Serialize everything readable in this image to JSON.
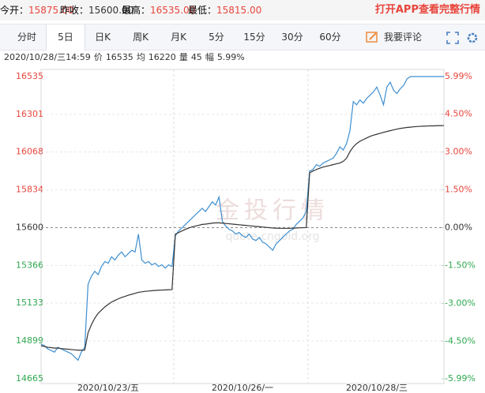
{
  "header": {
    "stats": [
      {
        "label": "今开：",
        "value": "15875.00"
      },
      {
        "label": "昨收：",
        "value": "15600.00"
      },
      {
        "label": "最高：",
        "value": "16535.00"
      },
      {
        "label": "最低：",
        "value": "15815.00"
      }
    ],
    "app_link": "打开APP查看完整行情"
  },
  "toolbar": {
    "tabs": [
      "分时",
      "5日",
      "日K",
      "周K",
      "月K",
      "5分",
      "15分",
      "30分",
      "60分"
    ],
    "comment": "我要评论"
  },
  "info": {
    "time": "2020/10/28/三14:59",
    "items": [
      {
        "label": "价",
        "value": "16535"
      },
      {
        "label": "均",
        "value": "16220"
      },
      {
        "label": "量",
        "value": "45"
      },
      {
        "label": "幅",
        "value": "5.99%"
      }
    ]
  },
  "watermark": {
    "text": "金投行情",
    "url": "quote.cngold.org"
  },
  "chart_data": {
    "type": "line",
    "categories": [
      null,
      null,
      null,
      null,
      null,
      null,
      null,
      null,
      null,
      null,
      null,
      null,
      null,
      null,
      null,
      null,
      null,
      null,
      null,
      null,
      "2020/10/23/五",
      null,
      null,
      null,
      null,
      null,
      null,
      null,
      null,
      null,
      null,
      null,
      null,
      null,
      null,
      null,
      null,
      null,
      null,
      null,
      null,
      null,
      null,
      null,
      null,
      null,
      null,
      null,
      null,
      null,
      null,
      null,
      null,
      null,
      null,
      null,
      null,
      null,
      null,
      null,
      "2020/10/26/一",
      null,
      null,
      null,
      null,
      null,
      null,
      null,
      null,
      null,
      null,
      null,
      null,
      null,
      null,
      null,
      null,
      null,
      null,
      null,
      null,
      null,
      null,
      null,
      null,
      null,
      null,
      null,
      null,
      null,
      null,
      null,
      null,
      null,
      null,
      null,
      null,
      null,
      null,
      null,
      "2020/10/28/三",
      null,
      null,
      null,
      null,
      null,
      null,
      null,
      null,
      null,
      null,
      null,
      null,
      null,
      null,
      null,
      null,
      null,
      null,
      null,
      null
    ],
    "series": [
      {
        "name": "价",
        "color": "#3d8fd1",
        "values": [
          14880,
          14870,
          14850,
          14840,
          14830,
          14860,
          14850,
          14840,
          14830,
          14820,
          14800,
          14780,
          14830,
          14860,
          15250,
          15300,
          15330,
          15310,
          15360,
          15390,
          15380,
          15420,
          15400,
          15430,
          15450,
          15420,
          15440,
          15460,
          15450,
          15560,
          15400,
          15380,
          15390,
          15370,
          15380,
          15360,
          15370,
          15350,
          15370,
          15360,
          15550,
          15580,
          15600,
          15620,
          15640,
          15660,
          15680,
          15700,
          15720,
          15700,
          15730,
          15760,
          15740,
          15790,
          15640,
          15610,
          15590,
          15580,
          15560,
          15570,
          15550,
          15540,
          15560,
          15530,
          15520,
          15540,
          15510,
          15500,
          15480,
          15460,
          15500,
          15520,
          15540,
          15560,
          15580,
          15590,
          15620,
          15640,
          15660,
          15700,
          15950,
          15960,
          15990,
          15980,
          16000,
          16010,
          16020,
          16030,
          16060,
          16100,
          16080,
          16120,
          16200,
          16380,
          16360,
          16390,
          16370,
          16400,
          16420,
          16440,
          16470,
          16420,
          16360,
          16470,
          16500,
          16450,
          16430,
          16460,
          16480,
          16520,
          16535,
          16535,
          16535,
          16535,
          16535,
          16535,
          16535,
          16535,
          16535,
          16535,
          16535
        ]
      },
      {
        "name": "均",
        "color": "#333333",
        "values": [
          14870,
          14865,
          14860,
          14858,
          14855,
          14855,
          14852,
          14850,
          14848,
          14846,
          14844,
          14842,
          14842,
          14843,
          14950,
          15000,
          15040,
          15070,
          15090,
          15110,
          15125,
          15140,
          15150,
          15160,
          15168,
          15175,
          15182,
          15188,
          15194,
          15200,
          15203,
          15206,
          15208,
          15210,
          15212,
          15213,
          15214,
          15215,
          15216,
          15217,
          15560,
          15570,
          15580,
          15590,
          15598,
          15605,
          15610,
          15615,
          15620,
          15622,
          15625,
          15628,
          15630,
          15630,
          15628,
          15626,
          15624,
          15622,
          15620,
          15618,
          15616,
          15614,
          15612,
          15610,
          15608,
          15606,
          15604,
          15602,
          15600,
          15598,
          15597,
          15596,
          15596,
          15596,
          15596,
          15597,
          15598,
          15599,
          15600,
          15601,
          15940,
          15950,
          15960,
          15968,
          15975,
          15980,
          15985,
          15990,
          15995,
          16000,
          16010,
          16030,
          16070,
          16100,
          16120,
          16135,
          16145,
          16155,
          16165,
          16172,
          16178,
          16184,
          16190,
          16195,
          16200,
          16205,
          16210,
          16214,
          16217,
          16220,
          16222,
          16224,
          16226,
          16227,
          16228,
          16229,
          16230,
          16230,
          16231,
          16231,
          16232
        ]
      }
    ],
    "ylim": [
      14665,
      16535
    ],
    "yticks": [
      14665,
      14899,
      15133,
      15366,
      15600,
      15834,
      16068,
      16301,
      16535
    ],
    "y2lim": [
      -5.99,
      5.99
    ],
    "y2ticks": [
      {
        "value": -5.99,
        "label": "-5.99%"
      },
      {
        "value": -4.5,
        "label": "-4.50%"
      },
      {
        "value": -3,
        "label": "-3.00%"
      },
      {
        "value": -1.5,
        "label": "-1.50%"
      },
      {
        "value": 0,
        "label": "0.00%"
      },
      {
        "value": 1.5,
        "label": "1.50%"
      },
      {
        "value": 3,
        "label": "3.00%"
      },
      {
        "value": 4.5,
        "label": "4.50%"
      },
      {
        "value": 5.99,
        "label": "5.99%"
      }
    ],
    "grid": true
  }
}
